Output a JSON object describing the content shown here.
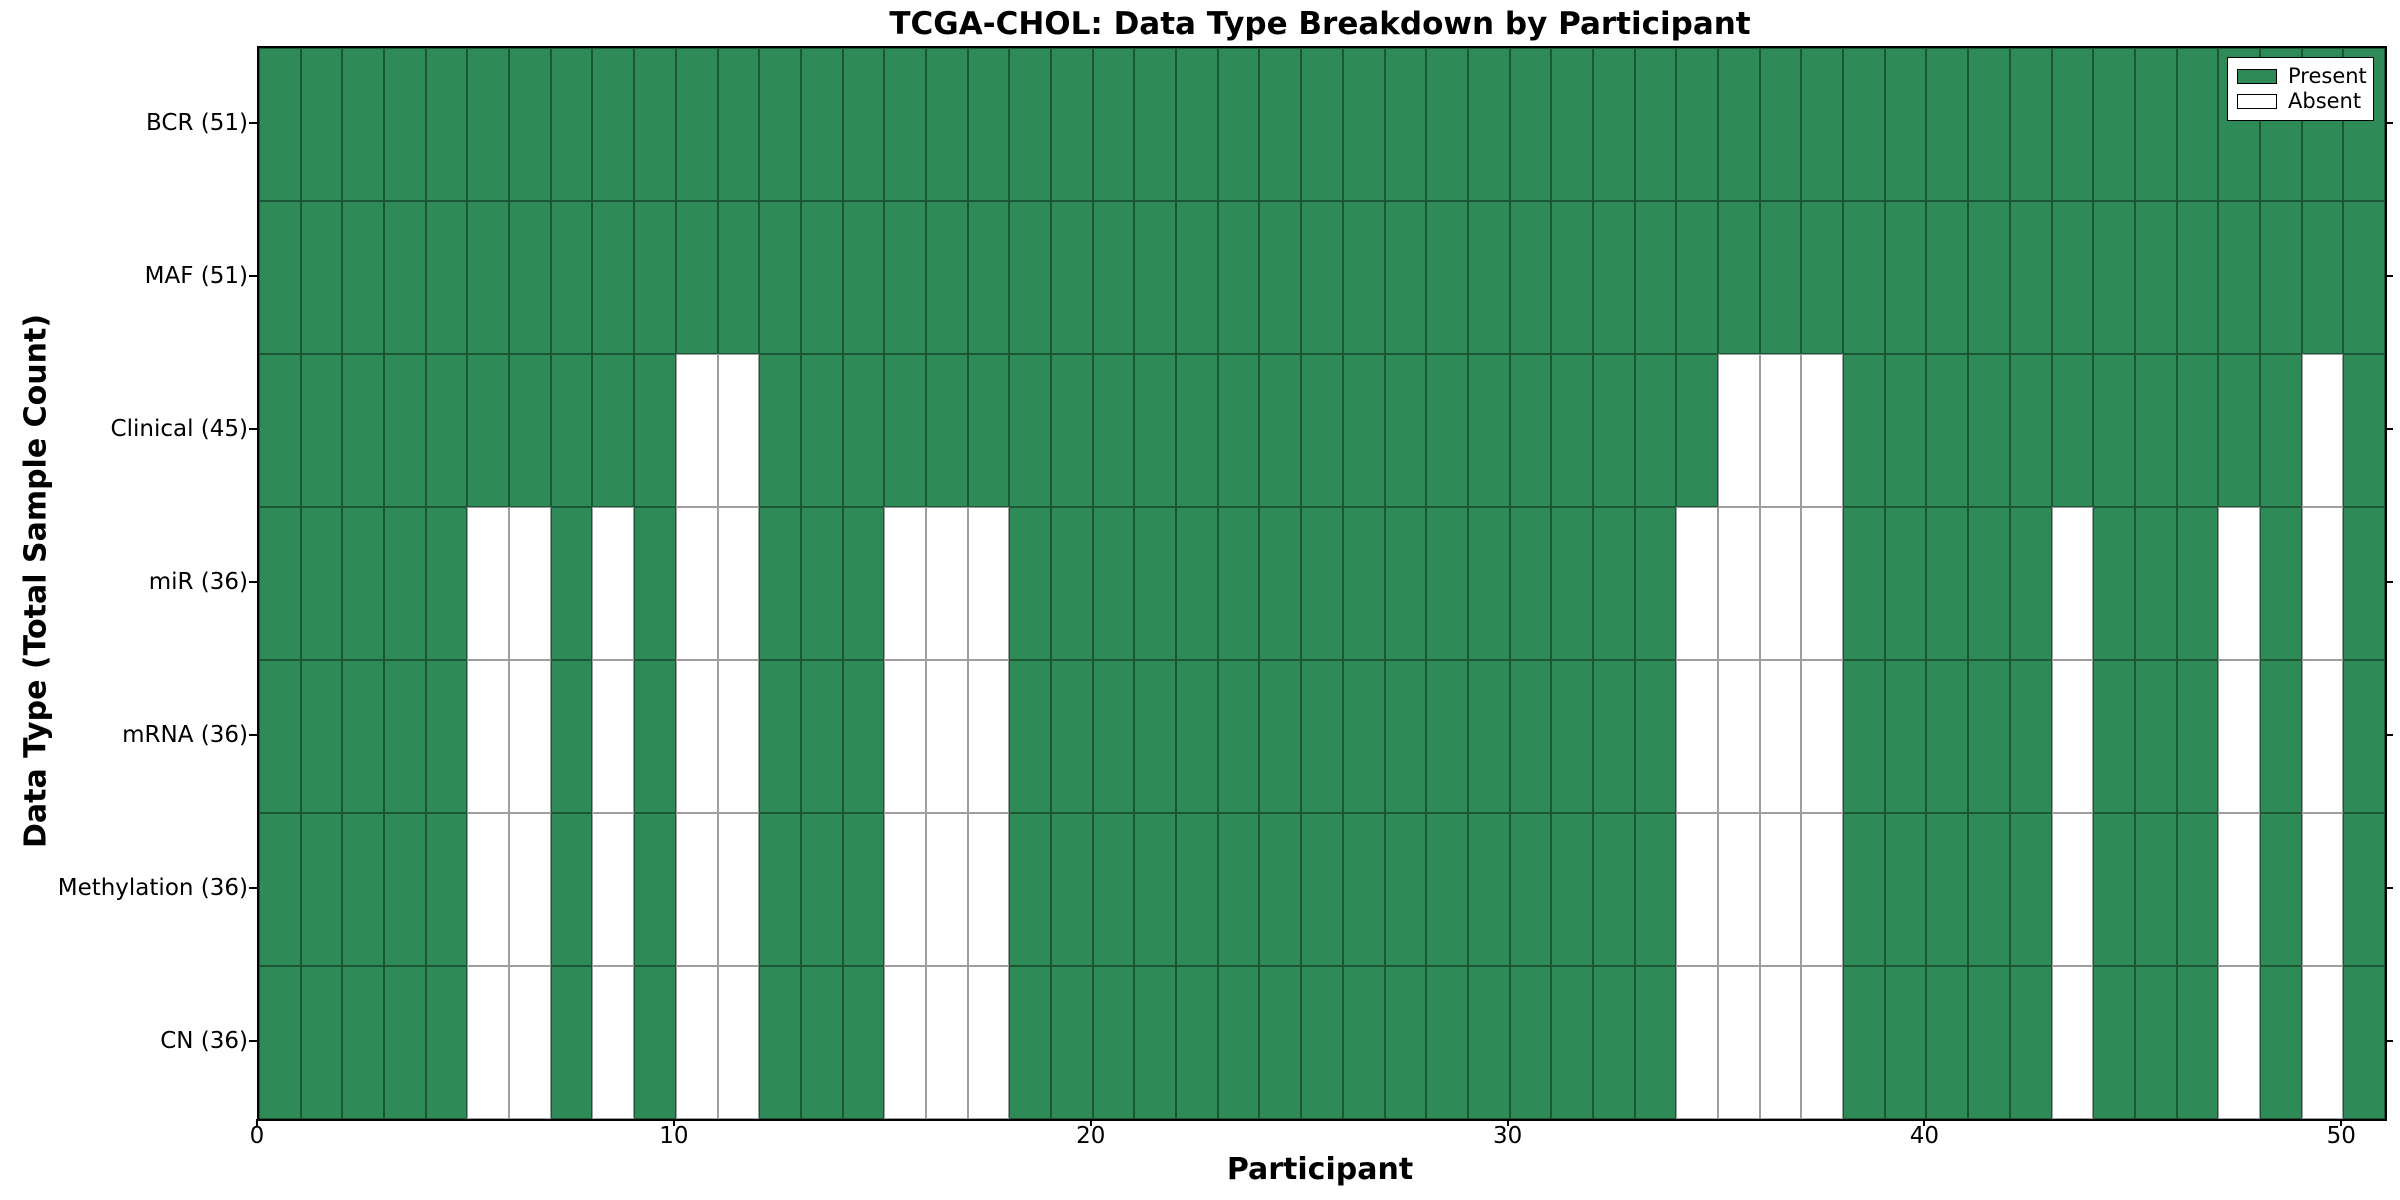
{
  "chart_data": {
    "type": "heatmap",
    "title": "TCGA-CHOL: Data Type Breakdown by Participant",
    "xlabel": "Participant",
    "ylabel": "Data Type (Total Sample Count)",
    "n_participants": 51,
    "xlim": [
      0,
      51
    ],
    "x_ticks": [
      0,
      10,
      20,
      30,
      40,
      50
    ],
    "grid": "cell-edges",
    "legend_position": "upper right",
    "legend": [
      {
        "label": "Present",
        "color": "#2E8B57"
      },
      {
        "label": "Absent",
        "color": "#FFFFFF"
      }
    ],
    "colors": {
      "present": "#2E8B57",
      "absent": "#FFFFFF",
      "cell_edge": "rgba(0,0,0,0.38)",
      "spine": "#000000",
      "text": "#000000"
    },
    "rows": [
      {
        "label": "BCR (51)",
        "data_type": "BCR",
        "present_count": 51,
        "absent_participants": []
      },
      {
        "label": "MAF (51)",
        "data_type": "MAF",
        "present_count": 51,
        "absent_participants": []
      },
      {
        "label": "Clinical (45)",
        "data_type": "Clinical",
        "present_count": 45,
        "absent_participants": [
          10,
          11,
          35,
          36,
          37,
          49
        ]
      },
      {
        "label": "miR (36)",
        "data_type": "miR",
        "present_count": 36,
        "absent_participants": [
          5,
          6,
          8,
          10,
          11,
          15,
          16,
          17,
          34,
          35,
          36,
          37,
          43,
          47,
          49
        ]
      },
      {
        "label": "mRNA (36)",
        "data_type": "mRNA",
        "present_count": 36,
        "absent_participants": [
          5,
          6,
          8,
          10,
          11,
          15,
          16,
          17,
          34,
          35,
          36,
          37,
          43,
          47,
          49
        ]
      },
      {
        "label": "Methylation (36)",
        "data_type": "Methylation",
        "present_count": 36,
        "absent_participants": [
          5,
          6,
          8,
          10,
          11,
          15,
          16,
          17,
          34,
          35,
          36,
          37,
          43,
          47,
          49
        ]
      },
      {
        "label": "CN (36)",
        "data_type": "CN",
        "present_count": 36,
        "absent_participants": [
          5,
          6,
          8,
          10,
          11,
          15,
          16,
          17,
          34,
          35,
          36,
          37,
          43,
          47,
          49
        ]
      }
    ]
  }
}
